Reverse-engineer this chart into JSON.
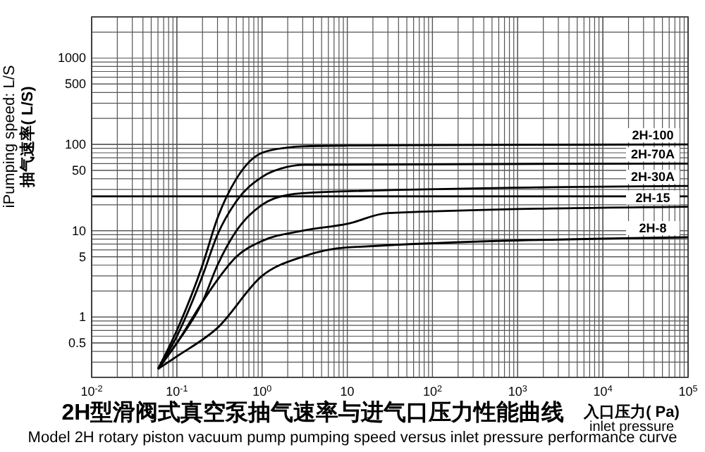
{
  "chart_data": {
    "type": "line",
    "title": "2H型滑阀式真空泵抽气速率与进气口压力性能曲线",
    "subtitle": "Model 2H rotary piston vacuum pump pumping speed versus inlet pressure performance curve",
    "xlabel": "入口压力( Pa)\ninlet pressure",
    "ylabel": "iPumping speed: L/S\n抽气速率( L/S)",
    "log": "xy",
    "grid": true,
    "line_style": "solid",
    "xlim": [
      0.01,
      100000
    ],
    "xticks": [
      {
        "value": 0.01,
        "label": "10$^{-2}$"
      },
      {
        "value": 0.1,
        "label": "10$^{-1}$"
      },
      {
        "value": 1,
        "label": "10$^{0}$"
      },
      10,
      {
        "value": 100,
        "label": "10$^{2}$"
      },
      {
        "value": 1000,
        "label": "10$^{3}$"
      },
      {
        "value": 10000,
        "label": "10$^{4}$"
      },
      {
        "value": 100000,
        "label": "10$^{5}$"
      }
    ],
    "ylim": [
      0.2,
      3000
    ],
    "yticks": [
      0.5,
      1,
      5,
      10,
      50,
      100,
      500,
      1000
    ],
    "ref_lines": [
      {
        "axis": "y",
        "value": 25,
        "color": "#000000"
      }
    ],
    "series": [
      {
        "name": "2H-100",
        "color": "#000000",
        "x": [
          0.06,
          0.1,
          0.2,
          0.3,
          0.5,
          1,
          2,
          3,
          10,
          100,
          100000
        ],
        "values": [
          0.25,
          0.7,
          4,
          14,
          40,
          80,
          92,
          95,
          97,
          98,
          100
        ]
      },
      {
        "name": "2H-70A",
        "color": "#000000",
        "x": [
          0.06,
          0.1,
          0.2,
          0.3,
          0.5,
          1,
          2,
          3,
          100000
        ],
        "values": [
          0.25,
          0.6,
          3,
          9,
          22,
          42,
          55,
          58,
          60
        ]
      },
      {
        "name": "2H-30A",
        "color": "#000000",
        "x": [
          0.06,
          0.1,
          0.2,
          0.3,
          0.5,
          1,
          2,
          5,
          100000
        ],
        "values": [
          0.25,
          0.5,
          1.5,
          4,
          10,
          20,
          26,
          28,
          33
        ]
      },
      {
        "name": "2H-15",
        "color": "#000000",
        "x": [
          0.06,
          0.1,
          0.2,
          0.3,
          0.5,
          1,
          3,
          10,
          30,
          100000
        ],
        "values": [
          0.25,
          0.5,
          1.5,
          2.7,
          5,
          7.6,
          10,
          12,
          16,
          19
        ]
      },
      {
        "name": "2H-8",
        "color": "#000000",
        "x": [
          0.06,
          0.1,
          0.3,
          1,
          3,
          10,
          100000
        ],
        "values": [
          0.25,
          0.35,
          0.75,
          3,
          5,
          6.4,
          8.4
        ]
      }
    ]
  }
}
